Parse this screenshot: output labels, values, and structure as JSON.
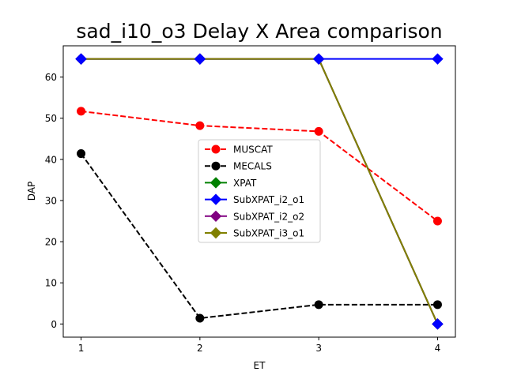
{
  "chart_data": {
    "type": "line",
    "title": "sad_i10_o3 Delay X Area comparison",
    "xlabel": "ET",
    "ylabel": "DAP",
    "x": [
      1,
      2,
      3,
      4
    ],
    "xlim": [
      0.85,
      4.15
    ],
    "ylim": [
      -3.2,
      67.6
    ],
    "xticks": [
      1,
      2,
      3,
      4
    ],
    "yticks": [
      0,
      10,
      20,
      30,
      40,
      50,
      60
    ],
    "legend_position": "center",
    "series": [
      {
        "name": "MUSCAT",
        "values": [
          51.7,
          48.2,
          46.8,
          25.0
        ],
        "color": "#ff0000",
        "dash": "dashed",
        "marker": "circle"
      },
      {
        "name": "MECALS",
        "values": [
          41.4,
          1.4,
          4.7,
          4.7
        ],
        "color": "#000000",
        "dash": "dashed",
        "marker": "circle"
      },
      {
        "name": "XPAT",
        "values": [
          64.4,
          64.4,
          64.4,
          0.0
        ],
        "color": "#008000",
        "dash": "solid",
        "marker": "diamond"
      },
      {
        "name": "SubXPAT_i2_o1",
        "values": [
          64.4,
          64.4,
          64.4,
          64.4
        ],
        "color": "#0000ff",
        "dash": "solid",
        "marker": "diamond"
      },
      {
        "name": "SubXPAT_i2_o2",
        "values": [
          64.4,
          64.4,
          64.4,
          0.0
        ],
        "color": "#800080",
        "dash": "solid",
        "marker": "diamond"
      },
      {
        "name": "SubXPAT_i3_o1",
        "values": [
          64.4,
          64.4,
          64.4,
          0.0
        ],
        "color": "#808000",
        "dash": "solid",
        "marker": "diamond",
        "marker_color": "#0000ff"
      }
    ]
  }
}
